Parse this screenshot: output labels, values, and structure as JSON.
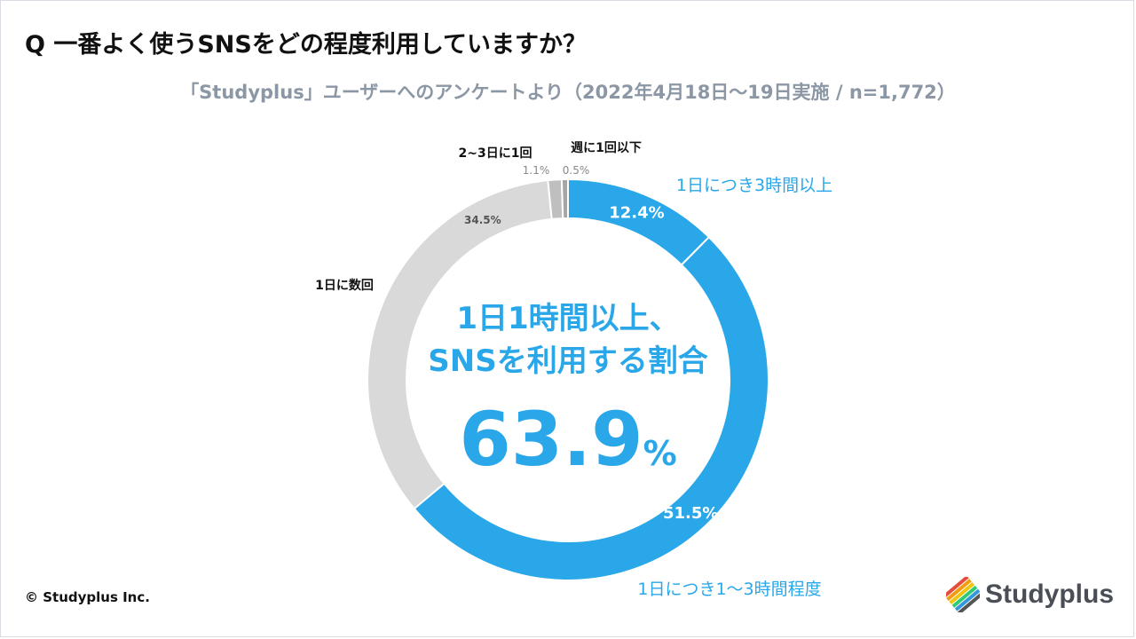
{
  "title": "Q 一番よく使うSNSをどの程度利用していますか？",
  "subtitle": "「Studyplus」ユーザーへのアンケートより（2022年4月18日～19日実施 / n=1,772）",
  "center": {
    "line1": "1日1時間以上、",
    "line2": "SNSを利用する割合",
    "value": "63.9",
    "unit": "%"
  },
  "copyright": "© Studyplus Inc.",
  "logo_text": "Studyplus",
  "colors": {
    "blue": "#29a7e8",
    "light_gray": "#d9d9d9",
    "mid_gray": "#bfbfbf",
    "dark_gray": "#a6a6a6"
  },
  "chart_data": {
    "type": "pie",
    "style": "donut",
    "slices": [
      {
        "label": "1日につき3時間以上",
        "value": 12.4,
        "value_label": "12.4%",
        "color": "#29a7e8"
      },
      {
        "label": "1日につき1～3時間程度",
        "value": 51.5,
        "value_label": "51.5%",
        "color": "#29a7e8"
      },
      {
        "label": "1日に数回",
        "value": 34.5,
        "value_label": "34.5%",
        "color": "#d9d9d9"
      },
      {
        "label": "2~3日に1回",
        "value": 1.1,
        "value_label": "1.1%",
        "color": "#bfbfbf"
      },
      {
        "label": "週に1回以下",
        "value": 0.5,
        "value_label": "0.5%",
        "color": "#a6a6a6"
      }
    ]
  }
}
